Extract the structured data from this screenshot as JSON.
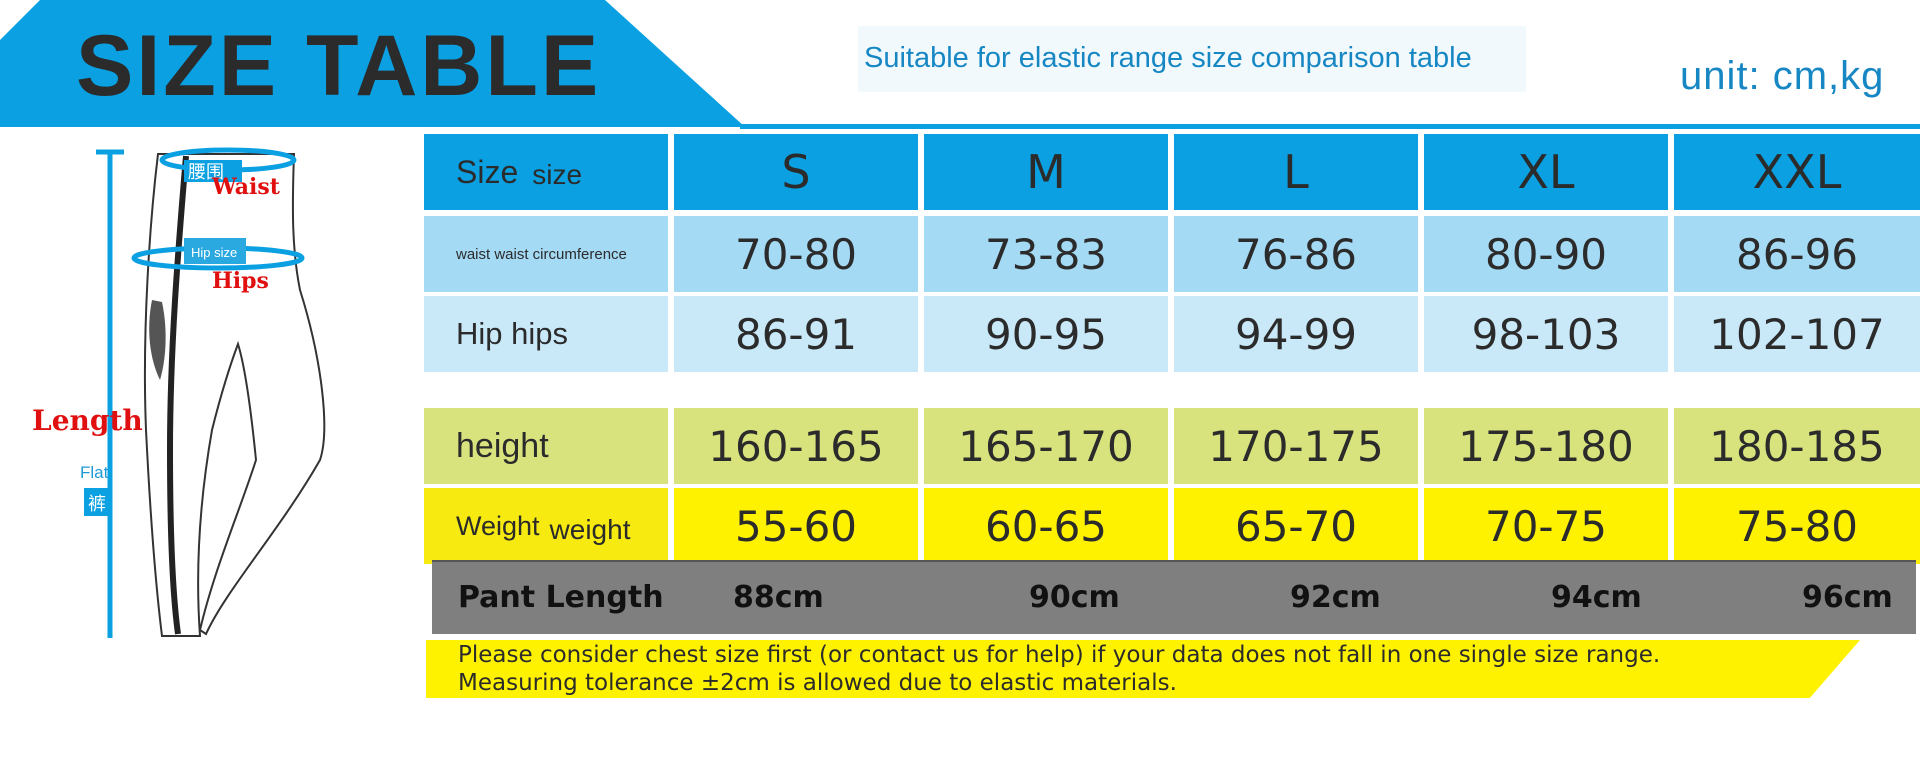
{
  "header": {
    "title": "SIZE TABLE",
    "subtitle": "Suitable for elastic range size comparison table",
    "unit": "unit: cm,kg"
  },
  "illustration": {
    "waist_cn": "腰围",
    "waist": "Waist",
    "hip_size": "Hip size",
    "hips": "Hips",
    "length": "Length",
    "flat": "Flat",
    "pants_cn": "裤"
  },
  "table": {
    "header": {
      "label": "Size",
      "sub": "size",
      "sizes": [
        "S",
        "M",
        "L",
        "XL",
        "XXL"
      ]
    },
    "waist": {
      "label": "waist waist circumference",
      "values": [
        "70-80",
        "73-83",
        "76-86",
        "80-90",
        "86-96"
      ]
    },
    "hip": {
      "label": "Hip hips",
      "values": [
        "86-91",
        "90-95",
        "94-99",
        "98-103",
        "102-107"
      ]
    },
    "height": {
      "label": "height",
      "values": [
        "160-165",
        "165-170",
        "170-175",
        "175-180",
        "180-185"
      ]
    },
    "weight": {
      "label": "Weight",
      "sub": "weight",
      "values": [
        "55-60",
        "60-65",
        "65-70",
        "70-75",
        "75-80"
      ]
    }
  },
  "pant_length": {
    "label": "Pant Length",
    "values": [
      "88cm",
      "90cm",
      "92cm",
      "94cm",
      "96cm"
    ]
  },
  "note": {
    "line1": "Please consider chest size first (or contact us for help) if your data does not fall in one single size range.",
    "line2": "Measuring tolerance ±2cm is allowed due to elastic materials."
  },
  "colors": {
    "blue": "#0aa0e2",
    "light_blue": "#a5daf5",
    "lighter_blue": "#c9e9f9",
    "olive": "#d9e37e",
    "yellow": "#fff200",
    "gray": "#7f7f7f",
    "red_text": "#e01010"
  }
}
